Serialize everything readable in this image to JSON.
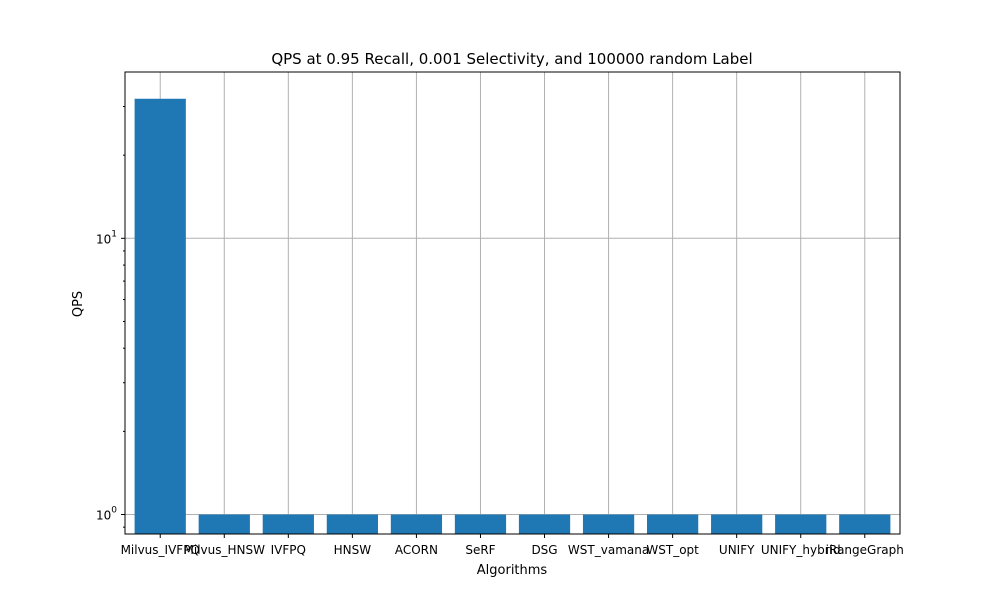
{
  "chart_data": {
    "type": "bar",
    "title": "QPS at 0.95 Recall, 0.001 Selectivity, and 100000 random Label",
    "xlabel": "Algorithms",
    "ylabel": "QPS",
    "yscale": "log",
    "ylim": [
      0.85,
      40
    ],
    "yticks": [
      {
        "value": 1,
        "base": "10",
        "exp": "0"
      },
      {
        "value": 10,
        "base": "10",
        "exp": "1"
      }
    ],
    "grid": true,
    "bar_color": "#1f77b4",
    "categories": [
      "Milvus_IVFPQ",
      "Milvus_HNSW",
      "IVFPQ",
      "HNSW",
      "ACORN",
      "SeRF",
      "DSG",
      "WST_vamana",
      "WST_opt",
      "UNIFY",
      "UNIFY_hybrid",
      "iRangeGraph"
    ],
    "values": [
      32,
      1,
      1,
      1,
      1,
      1,
      1,
      1,
      1,
      1,
      1,
      1
    ]
  }
}
